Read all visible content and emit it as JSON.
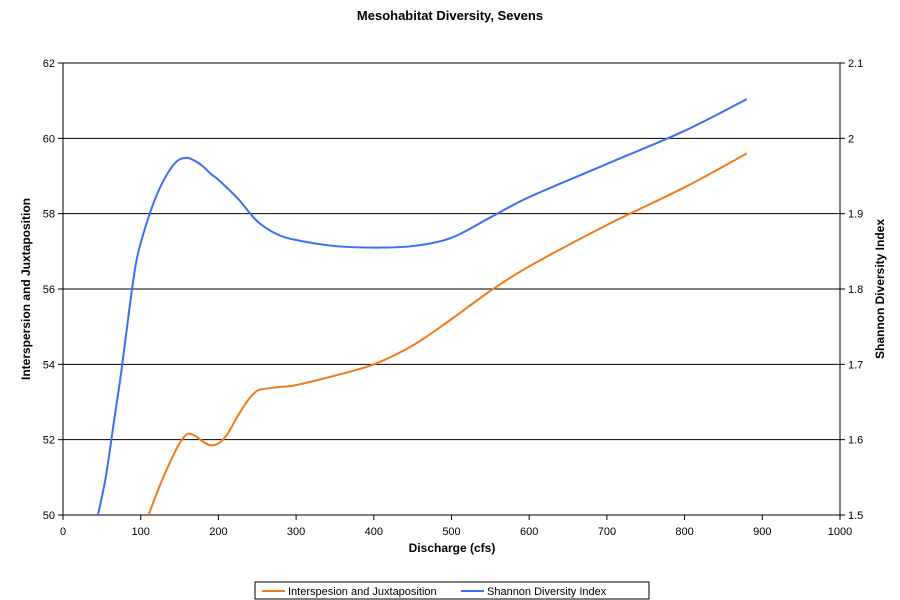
{
  "chart_data": {
    "type": "line",
    "title": "Mesohabitat Diversity, Sevens",
    "xlabel": "Discharge (cfs)",
    "ylabel_left": "Interspersion and Juxtaposition",
    "ylabel_right": "Shannon Diversity Index",
    "xlim": [
      0,
      1000
    ],
    "ylim_left": [
      50,
      62
    ],
    "ylim_right": [
      1.5,
      2.1
    ],
    "x_ticks": [
      "0",
      "100",
      "200",
      "300",
      "400",
      "500",
      "600",
      "700",
      "800",
      "900",
      "1000"
    ],
    "y_left_ticks": [
      "50",
      "52",
      "54",
      "56",
      "58",
      "60",
      "62"
    ],
    "y_right_ticks": [
      "1.5",
      "1.6",
      "1.7",
      "1.8",
      "1.9",
      "2",
      "2.1"
    ],
    "grid": "horizontal",
    "legend_position": "bottom",
    "series": [
      {
        "name": "Interspesion and Juxtaposition",
        "axis": "left",
        "color": "#f07a1c",
        "x": [
          110,
          125,
          140,
          150,
          160,
          170,
          180,
          190,
          200,
          210,
          220,
          230,
          240,
          250,
          260,
          280,
          300,
          350,
          400,
          450,
          500,
          550,
          600,
          700,
          800,
          880
        ],
        "y": [
          50.0,
          50.8,
          51.5,
          51.9,
          52.15,
          52.1,
          51.95,
          51.85,
          51.9,
          52.1,
          52.45,
          52.8,
          53.1,
          53.3,
          53.35,
          53.4,
          53.45,
          53.7,
          54.0,
          54.5,
          55.2,
          55.95,
          56.6,
          57.7,
          58.7,
          59.6
        ]
      },
      {
        "name": "Shannon Diversity Index",
        "axis": "right",
        "color": "#3e6ff0",
        "x": [
          45,
          55,
          65,
          75,
          85,
          95,
          110,
          125,
          140,
          150,
          160,
          170,
          180,
          190,
          200,
          225,
          250,
          275,
          300,
          350,
          400,
          450,
          500,
          550,
          600,
          700,
          800,
          880
        ],
        "y": [
          1.5,
          1.55,
          1.62,
          1.69,
          1.77,
          1.84,
          1.895,
          1.935,
          1.962,
          1.972,
          1.974,
          1.97,
          1.963,
          1.953,
          1.945,
          1.92,
          1.89,
          1.873,
          1.865,
          1.857,
          1.855,
          1.857,
          1.868,
          1.895,
          1.922,
          1.966,
          2.01,
          2.052
        ]
      }
    ]
  }
}
